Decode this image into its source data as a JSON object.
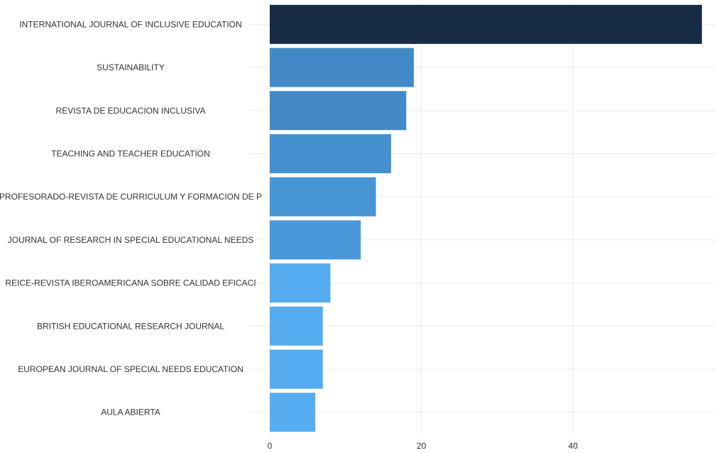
{
  "chart_data": {
    "type": "bar",
    "orientation": "horizontal",
    "categories": [
      "INTERNATIONAL JOURNAL OF INCLUSIVE EDUCATION",
      "SUSTAINABILITY",
      "REVISTA DE EDUCACION INCLUSIVA",
      "TEACHING AND TEACHER EDUCATION",
      "PROFESORADO-REVISTA DE CURRICULUM Y FORMACION DE P",
      "JOURNAL OF RESEARCH IN SPECIAL EDUCATIONAL NEEDS",
      "REICE-REVISTA IBEROAMERICANA SOBRE CALIDAD EFICACI",
      "BRITISH EDUCATIONAL RESEARCH JOURNAL",
      "EUROPEAN JOURNAL OF SPECIAL NEEDS EDUCATION",
      "AULA ABIERTA"
    ],
    "values": [
      57,
      19,
      18,
      16,
      14,
      12,
      8,
      7,
      7,
      6
    ],
    "bar_colors": [
      "#172b45",
      "#428ac7",
      "#428ac7",
      "#4590cf",
      "#4895d6",
      "#4a98da",
      "#55abef",
      "#55abef",
      "#55abef",
      "#56adf2"
    ],
    "x_ticks": [
      "0",
      "20",
      "40"
    ],
    "x_tick_values": [
      0,
      20,
      40
    ],
    "xlim": [
      0,
      58.7
    ],
    "grid": true,
    "title": "",
    "xlabel": "",
    "ylabel": ""
  }
}
